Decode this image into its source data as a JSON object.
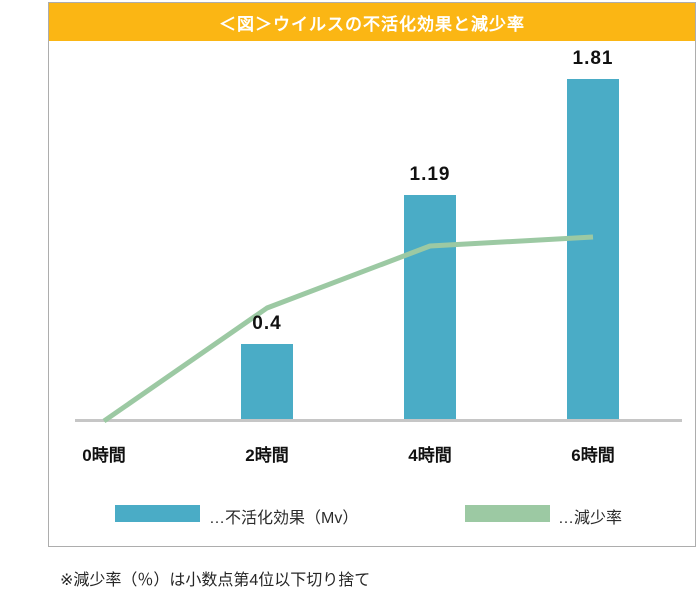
{
  "card": {
    "title": "＜図＞ウイルスの不活化効果と減少率"
  },
  "chart_data": {
    "type": "bar",
    "title": "＜図＞ウイルスの不活化効果と減少率",
    "categories": [
      "0時間",
      "2時間",
      "4時間",
      "6時間"
    ],
    "series": [
      {
        "name": "…不活化効果（Mv）",
        "type": "bar",
        "values": [
          0,
          0.4,
          1.19,
          1.81
        ],
        "data_labels": [
          "",
          "0.4",
          "1.19",
          "1.81"
        ]
      },
      {
        "name": "…減少率",
        "type": "line",
        "values": [
          0,
          0.6,
          0.93,
          0.98
        ],
        "values_estimated": true
      }
    ],
    "xlabel": "",
    "ylabel": "",
    "ylim": [
      0,
      2
    ],
    "grid": false,
    "y_axis_visible": false,
    "legend_position": "bottom"
  },
  "legend": {
    "items": [
      {
        "label": "…不活化効果（Mv）",
        "marker": "bar-swatch"
      },
      {
        "label": "…減少率",
        "marker": "line-swatch"
      }
    ]
  },
  "footnote": "※減少率（％）は小数点第4位以下切り捨て",
  "colors": {
    "header_bg": "#FBB614",
    "header_text": "#FFFFFF",
    "bar": "#4AACC6",
    "line": "#9CC9A3",
    "axis": "#C6C6C6",
    "card_border": "#ADADAD",
    "label_text": "#111111"
  }
}
